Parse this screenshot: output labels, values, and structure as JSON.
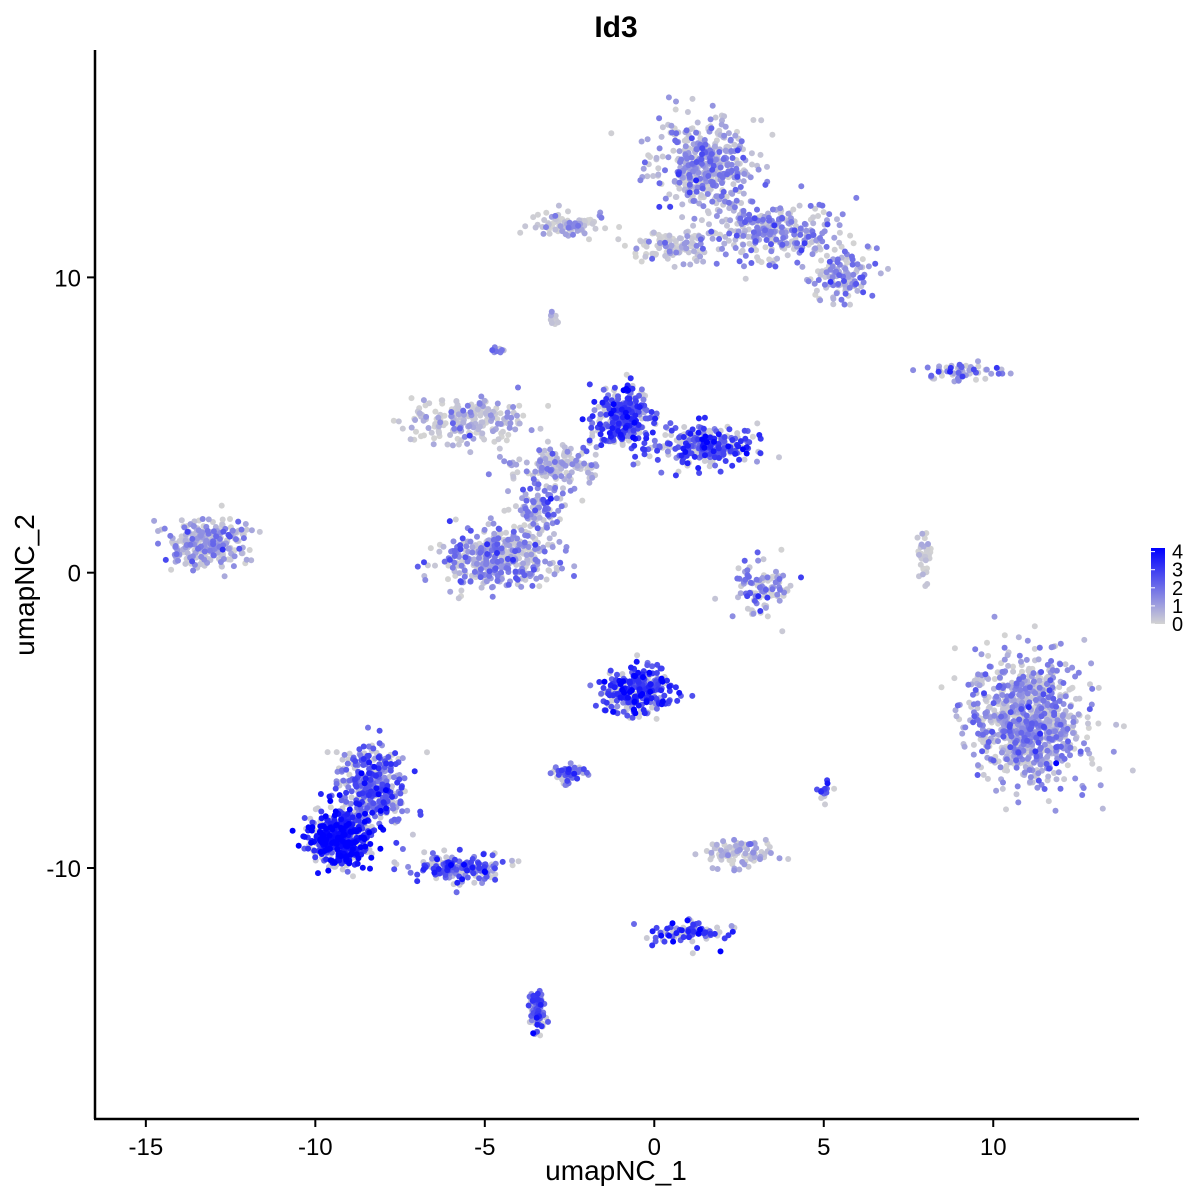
{
  "chart_data": {
    "type": "scatter",
    "title": "Id3",
    "xlabel": "umapNC_1",
    "ylabel": "umapNC_2",
    "xlim": [
      -16.5,
      14.3
    ],
    "ylim": [
      -18.5,
      17.7
    ],
    "x_ticks": [
      -15,
      -10,
      -5,
      0,
      5,
      10
    ],
    "x_tick_labels": [
      "-15",
      "-10",
      "-5",
      "0",
      "5",
      "10"
    ],
    "y_ticks": [
      -10,
      0,
      10
    ],
    "y_tick_labels": [
      "-10",
      "0",
      "10"
    ],
    "grid": false,
    "colors": {
      "low": "#d3d3d3",
      "high": "#0000ff"
    },
    "legend": {
      "position": "right",
      "min": 0,
      "max": 4.2,
      "ticks": [
        0,
        1,
        2,
        3,
        4
      ],
      "tick_labels": [
        "0",
        "1",
        "2",
        "3",
        "4"
      ]
    },
    "clusters": [
      {
        "x": 1.5,
        "y": 13.8,
        "sx": 1.2,
        "sy": 1.4,
        "n": 420,
        "expr": 1.2
      },
      {
        "x": 3.5,
        "y": 11.5,
        "sx": 1.8,
        "sy": 0.9,
        "n": 300,
        "expr": 1.3
      },
      {
        "x": 5.5,
        "y": 10.0,
        "sx": 0.8,
        "sy": 0.8,
        "n": 120,
        "expr": 1.0
      },
      {
        "x": -2.5,
        "y": 11.8,
        "sx": 1.0,
        "sy": 0.4,
        "n": 90,
        "expr": 0.5
      },
      {
        "x": 0.5,
        "y": 11.0,
        "sx": 1.2,
        "sy": 0.5,
        "n": 100,
        "expr": 0.3
      },
      {
        "x": -5.5,
        "y": 5.2,
        "sx": 1.5,
        "sy": 0.7,
        "n": 220,
        "expr": 0.4
      },
      {
        "x": -1.0,
        "y": 5.2,
        "sx": 0.8,
        "sy": 0.9,
        "n": 300,
        "expr": 2.8
      },
      {
        "x": 1.5,
        "y": 4.3,
        "sx": 1.4,
        "sy": 0.6,
        "n": 260,
        "expr": 2.6
      },
      {
        "x": -2.8,
        "y": 3.6,
        "sx": 1.2,
        "sy": 0.6,
        "n": 140,
        "expr": 0.8
      },
      {
        "x": -4.6,
        "y": 0.5,
        "sx": 1.5,
        "sy": 0.9,
        "n": 380,
        "expr": 1.3
      },
      {
        "x": -3.4,
        "y": 2.2,
        "sx": 0.6,
        "sy": 0.8,
        "n": 110,
        "expr": 1.6
      },
      {
        "x": -13.2,
        "y": 1.0,
        "sx": 1.1,
        "sy": 0.7,
        "n": 280,
        "expr": 1.0
      },
      {
        "x": 11.0,
        "y": -5.0,
        "sx": 1.5,
        "sy": 1.9,
        "n": 900,
        "expr": 1.2
      },
      {
        "x": -9.3,
        "y": -9.0,
        "sx": 0.8,
        "sy": 0.8,
        "n": 500,
        "expr": 3.6
      },
      {
        "x": -8.3,
        "y": -7.3,
        "sx": 0.9,
        "sy": 1.3,
        "n": 360,
        "expr": 2.2
      },
      {
        "x": -5.8,
        "y": -10.0,
        "sx": 1.2,
        "sy": 0.5,
        "n": 180,
        "expr": 2.4
      },
      {
        "x": -0.5,
        "y": -4.0,
        "sx": 0.9,
        "sy": 0.7,
        "n": 300,
        "expr": 2.9
      },
      {
        "x": -2.5,
        "y": -6.8,
        "sx": 0.4,
        "sy": 0.25,
        "n": 60,
        "expr": 2.1
      },
      {
        "x": -3.5,
        "y": -14.8,
        "sx": 0.25,
        "sy": 0.6,
        "n": 80,
        "expr": 2.4
      },
      {
        "x": 1.0,
        "y": -12.2,
        "sx": 1.0,
        "sy": 0.4,
        "n": 90,
        "expr": 2.8
      },
      {
        "x": 3.2,
        "y": -0.5,
        "sx": 0.7,
        "sy": 0.9,
        "n": 100,
        "expr": 1.5
      },
      {
        "x": 2.5,
        "y": -9.5,
        "sx": 0.9,
        "sy": 0.4,
        "n": 90,
        "expr": 0.5
      },
      {
        "x": 9.0,
        "y": 6.8,
        "sx": 1.2,
        "sy": 0.3,
        "n": 60,
        "expr": 1.6
      },
      {
        "x": 5.0,
        "y": -7.5,
        "sx": 0.2,
        "sy": 0.3,
        "n": 20,
        "expr": 2.2
      },
      {
        "x": 8.0,
        "y": 0.5,
        "sx": 0.2,
        "sy": 0.9,
        "n": 40,
        "expr": 0.2
      },
      {
        "x": -4.6,
        "y": 7.5,
        "sx": 0.15,
        "sy": 0.15,
        "n": 10,
        "expr": 1.4
      },
      {
        "x": -3.0,
        "y": 8.6,
        "sx": 0.2,
        "sy": 0.2,
        "n": 10,
        "expr": 1.4
      }
    ]
  }
}
